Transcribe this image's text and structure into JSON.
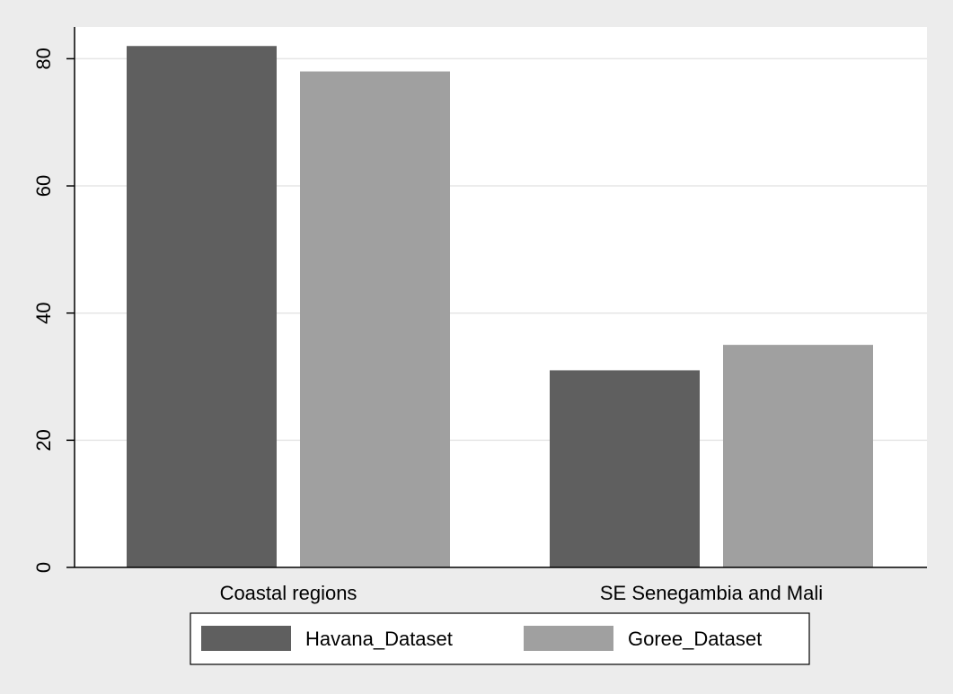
{
  "chart_data": {
    "type": "bar",
    "categories": [
      "Coastal regions",
      "SE Senegambia and Mali"
    ],
    "series": [
      {
        "name": "Havana_Dataset",
        "values": [
          82,
          31
        ],
        "color": "#5f5f5f"
      },
      {
        "name": "Goree_Dataset",
        "values": [
          78,
          35
        ],
        "color": "#a0a0a0"
      }
    ],
    "title": "",
    "xlabel": "",
    "ylabel": "",
    "ylim": [
      0,
      85
    ],
    "yticks": [
      0,
      20,
      40,
      60,
      80
    ],
    "grid": true,
    "legend_position": "bottom",
    "colors": {
      "page_background": "#ececec",
      "plot_background": "#ffffff",
      "grid": "#e6e6e6",
      "axis": "#000000"
    }
  }
}
